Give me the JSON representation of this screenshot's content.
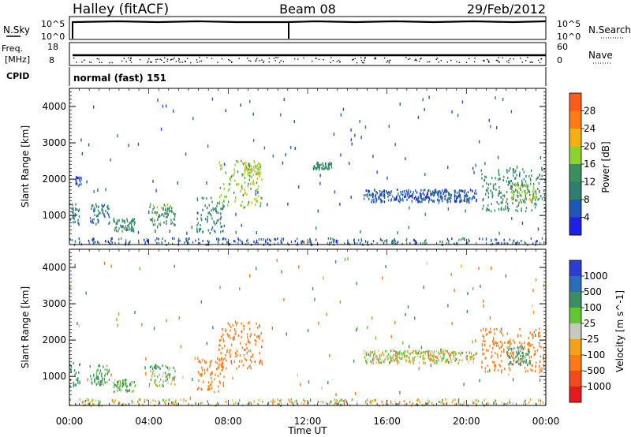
{
  "header": {
    "site_label": "Halley (fitACF)",
    "beam_label": "Beam 08",
    "date_label": "29/Feb/2012"
  },
  "panels": {
    "nsky": {
      "left_label": "N.Sky",
      "right_label": "N.Search",
      "left_ticks": [
        "10^5",
        "10^0"
      ],
      "right_ticks": [
        "10^5",
        "10^0"
      ]
    },
    "freq": {
      "left_label_1": "Freq.",
      "left_label_2": "[MHz]",
      "right_label": "Nave",
      "left_ticks": [
        "18",
        "8"
      ],
      "right_ticks": [
        "60",
        "0"
      ],
      "freq_mhz_range": [
        8,
        18
      ],
      "nave_range": [
        0,
        60
      ]
    },
    "cpid": {
      "label": "CPID",
      "program": "normal (fast) 151"
    }
  },
  "colors": {
    "power_scale": [
      "#1f1fe6",
      "#1f57b8",
      "#2f7f6e",
      "#3a8f5a",
      "#8fd12d",
      "#f2b10f",
      "#ff7b14",
      "#ff5a1e",
      "#e8191e"
    ],
    "velocity_scale": [
      "#2a3fd1",
      "#2a6fb8",
      "#3e8d62",
      "#63c734",
      "#c8c8be",
      "#f0a31a",
      "#ff7a14",
      "#f24a1e",
      "#e8191e"
    ]
  },
  "chart_data": [
    {
      "type": "heatmap",
      "title": "Power",
      "ylabel": "Slant Range [km]",
      "ylim": [
        200,
        4500
      ],
      "yticks": [
        1000,
        2000,
        3000,
        4000
      ],
      "xlim_hours": [
        0,
        24
      ],
      "colorbar": {
        "label": "Power [dB]",
        "ticks": [
          4,
          8,
          12,
          16,
          20,
          24,
          28
        ],
        "range": [
          0,
          32
        ]
      },
      "echo_regions": [
        {
          "t_start": 0.0,
          "t_end": 0.5,
          "r_start": 700,
          "r_end": 1350,
          "value": 8
        },
        {
          "t_start": 0.3,
          "t_end": 0.6,
          "r_start": 1800,
          "r_end": 2050,
          "value": 6
        },
        {
          "t_start": 1.0,
          "t_end": 2.0,
          "r_start": 750,
          "r_end": 1300,
          "value": 9
        },
        {
          "t_start": 2.2,
          "t_end": 3.3,
          "r_start": 550,
          "r_end": 900,
          "value": 12
        },
        {
          "t_start": 4.0,
          "t_end": 5.3,
          "r_start": 700,
          "r_end": 1300,
          "value": 14
        },
        {
          "t_start": 6.4,
          "t_end": 7.8,
          "r_start": 500,
          "r_end": 1500,
          "value": 11
        },
        {
          "t_start": 7.5,
          "t_end": 9.7,
          "r_start": 1200,
          "r_end": 2500,
          "value": 17
        },
        {
          "t_start": 8.8,
          "t_end": 9.6,
          "r_start": 2100,
          "r_end": 2450,
          "value": 20
        },
        {
          "t_start": 12.3,
          "t_end": 13.2,
          "r_start": 2250,
          "r_end": 2450,
          "value": 12
        },
        {
          "t_start": 14.8,
          "t_end": 20.5,
          "r_start": 1350,
          "r_end": 1700,
          "value": 6
        },
        {
          "t_start": 20.7,
          "t_end": 24.0,
          "r_start": 1100,
          "r_end": 2300,
          "value": 12
        },
        {
          "t_start": 22.2,
          "t_end": 23.5,
          "r_start": 1400,
          "r_end": 1900,
          "value": 17
        }
      ]
    },
    {
      "type": "heatmap",
      "title": "Velocity",
      "ylabel": "Slant Range [km]",
      "xlabel": "Time UT",
      "ylim": [
        200,
        4500
      ],
      "yticks": [
        1000,
        2000,
        3000,
        4000
      ],
      "xlim_hours": [
        0,
        24
      ],
      "xticks": [
        "00:00",
        "04:00",
        "08:00",
        "12:00",
        "16:00",
        "20:00",
        "00:00"
      ],
      "colorbar": {
        "label": "Velocity [m s^-1]",
        "ticks": [
          1000,
          500,
          100,
          25,
          -25,
          -100,
          -500,
          -1000
        ]
      },
      "echo_regions": [
        {
          "t_start": 0.0,
          "t_end": 0.5,
          "r_start": 700,
          "r_end": 1350,
          "value": 300
        },
        {
          "t_start": 1.0,
          "t_end": 2.0,
          "r_start": 750,
          "r_end": 1300,
          "value": 150
        },
        {
          "t_start": 2.2,
          "t_end": 3.3,
          "r_start": 550,
          "r_end": 900,
          "value": 80
        },
        {
          "t_start": 4.0,
          "t_end": 5.3,
          "r_start": 700,
          "r_end": 1300,
          "value": 60
        },
        {
          "t_start": 6.4,
          "t_end": 7.8,
          "r_start": 500,
          "r_end": 1500,
          "value": -300
        },
        {
          "t_start": 7.5,
          "t_end": 9.7,
          "r_start": 1200,
          "r_end": 2500,
          "value": -400
        },
        {
          "t_start": 14.8,
          "t_end": 20.5,
          "r_start": 1350,
          "r_end": 1700,
          "value": 0
        },
        {
          "t_start": 20.7,
          "t_end": 24.0,
          "r_start": 1100,
          "r_end": 2300,
          "value": -300
        },
        {
          "t_start": 22.0,
          "t_end": 23.2,
          "r_start": 1300,
          "r_end": 1800,
          "value": 200
        }
      ]
    }
  ]
}
